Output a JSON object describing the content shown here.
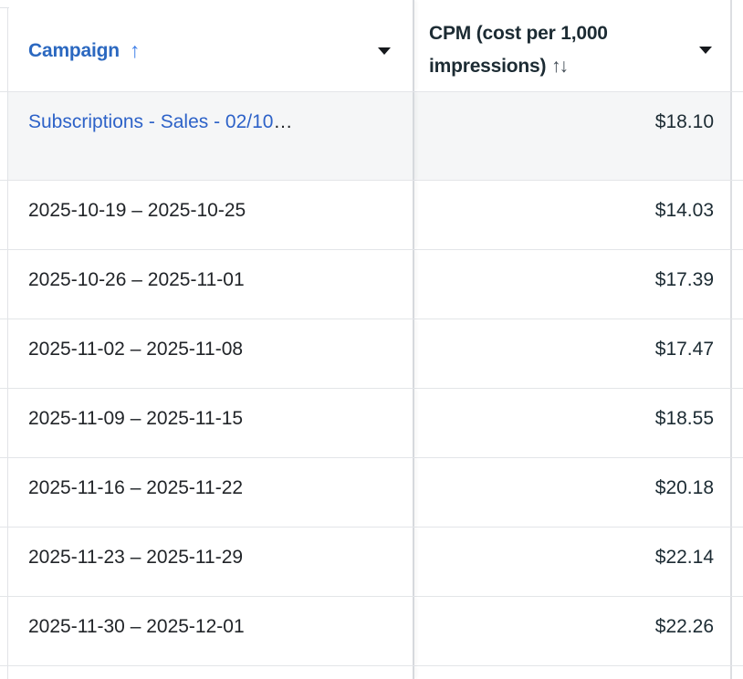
{
  "app": "ads-reporting-table",
  "colors": {
    "header_sort_blue": "#2b68c0",
    "sort_arrow_blue": "#4080e8",
    "link_blue": "#2d62c8",
    "header_text_dark": "#1c2b33",
    "body_text": "#212428",
    "value_text": "#1c2b33",
    "row_divider": "#e3e5e8",
    "frozen_column_divider": "#d6d9dd",
    "summary_row_bg": "#f5f6f7",
    "caret_color": "#16191d"
  },
  "table": {
    "columns": {
      "campaign": {
        "label": "Campaign",
        "sort_indicator": "↑"
      },
      "cpm": {
        "label": "CPM (cost per 1,000 impressions)",
        "sort_indicator": "↑↓"
      }
    },
    "summary_row": {
      "campaign_link": "Subscriptions - Sales - 02/10",
      "truncation": "…",
      "cpm": "$18.10"
    },
    "rows": [
      {
        "campaign": "2025-10-19 – 2025-10-25",
        "cpm": "$14.03"
      },
      {
        "campaign": "2025-10-26 – 2025-11-01",
        "cpm": "$17.39"
      },
      {
        "campaign": "2025-11-02 – 2025-11-08",
        "cpm": "$17.47"
      },
      {
        "campaign": "2025-11-09 – 2025-11-15",
        "cpm": "$18.55"
      },
      {
        "campaign": "2025-11-16 – 2025-11-22",
        "cpm": "$20.18"
      },
      {
        "campaign": "2025-11-23 – 2025-11-29",
        "cpm": "$22.14"
      },
      {
        "campaign": "2025-11-30 – 2025-12-01",
        "cpm": "$22.26"
      }
    ]
  }
}
